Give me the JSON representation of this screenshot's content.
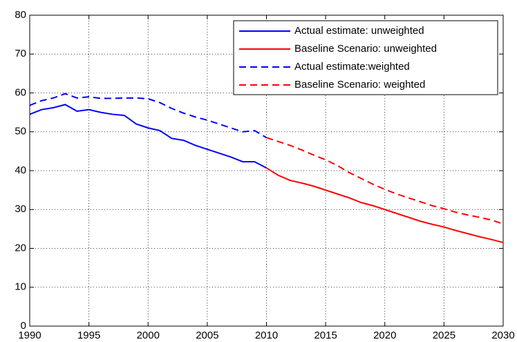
{
  "chart_data": {
    "type": "line",
    "x": [
      1990,
      1991,
      1992,
      1993,
      1994,
      1995,
      1996,
      1997,
      1998,
      1999,
      2000,
      2001,
      2002,
      2003,
      2004,
      2005,
      2006,
      2007,
      2008,
      2009,
      2010,
      2011,
      2012,
      2013,
      2014,
      2015,
      2016,
      2017,
      2018,
      2019,
      2020,
      2021,
      2022,
      2023,
      2024,
      2025,
      2026,
      2027,
      2028,
      2029,
      2030
    ],
    "series": [
      {
        "name": "Actual estimate: unweighted",
        "color": "#0000ff",
        "dashed": false,
        "values": [
          54.5,
          55.7,
          56.2,
          57,
          55.3,
          55.7,
          55,
          54.5,
          54.2,
          52,
          51,
          50.3,
          48.3,
          47.8,
          46.5,
          45.5,
          44.5,
          43.5,
          42.3,
          42.3,
          40.7,
          null,
          null,
          null,
          null,
          null,
          null,
          null,
          null,
          null,
          null,
          null,
          null,
          null,
          null,
          null,
          null,
          null,
          null,
          null,
          null
        ]
      },
      {
        "name": "Baseline Scenario: unweighted",
        "color": "#ff0000",
        "dashed": false,
        "values": [
          null,
          null,
          null,
          null,
          null,
          null,
          null,
          null,
          null,
          null,
          null,
          null,
          null,
          null,
          null,
          null,
          null,
          null,
          null,
          null,
          40.7,
          38.8,
          37.5,
          36.8,
          36,
          35,
          34,
          33,
          31.8,
          31,
          30,
          29,
          28,
          27,
          26.2,
          25.5,
          24.6,
          23.8,
          23,
          22.3,
          21.5
        ]
      },
      {
        "name": "Actual estimate:weighted",
        "color": "#0000ff",
        "dashed": true,
        "values": [
          56.8,
          58,
          58.7,
          59.8,
          58.7,
          59,
          58.6,
          58.6,
          58.7,
          58.7,
          58.5,
          57.5,
          56,
          54.8,
          53.8,
          53,
          52,
          51,
          50,
          50.3,
          48.5,
          null,
          null,
          null,
          null,
          null,
          null,
          null,
          null,
          null,
          null,
          null,
          null,
          null,
          null,
          null,
          null,
          null,
          null,
          null,
          null
        ]
      },
      {
        "name": "Baseline Scenario: weighted",
        "color": "#ff0000",
        "dashed": true,
        "values": [
          null,
          null,
          null,
          null,
          null,
          null,
          null,
          null,
          null,
          null,
          null,
          null,
          null,
          null,
          null,
          null,
          null,
          null,
          null,
          null,
          48.5,
          47.5,
          46.5,
          45.3,
          44,
          42.8,
          41.3,
          39.5,
          38,
          36.5,
          35.2,
          34,
          33,
          32,
          31,
          30.2,
          29.3,
          28.6,
          28,
          27.3,
          26.3
        ]
      }
    ],
    "xlim": [
      1990,
      2030
    ],
    "xticks": [
      1990,
      1995,
      2000,
      2005,
      2010,
      2015,
      2020,
      2025,
      2030
    ],
    "ylim": [
      0,
      80
    ],
    "yticks": [
      0,
      10,
      20,
      30,
      40,
      50,
      60,
      70,
      80
    ],
    "grid": true,
    "legend": "upper right"
  }
}
